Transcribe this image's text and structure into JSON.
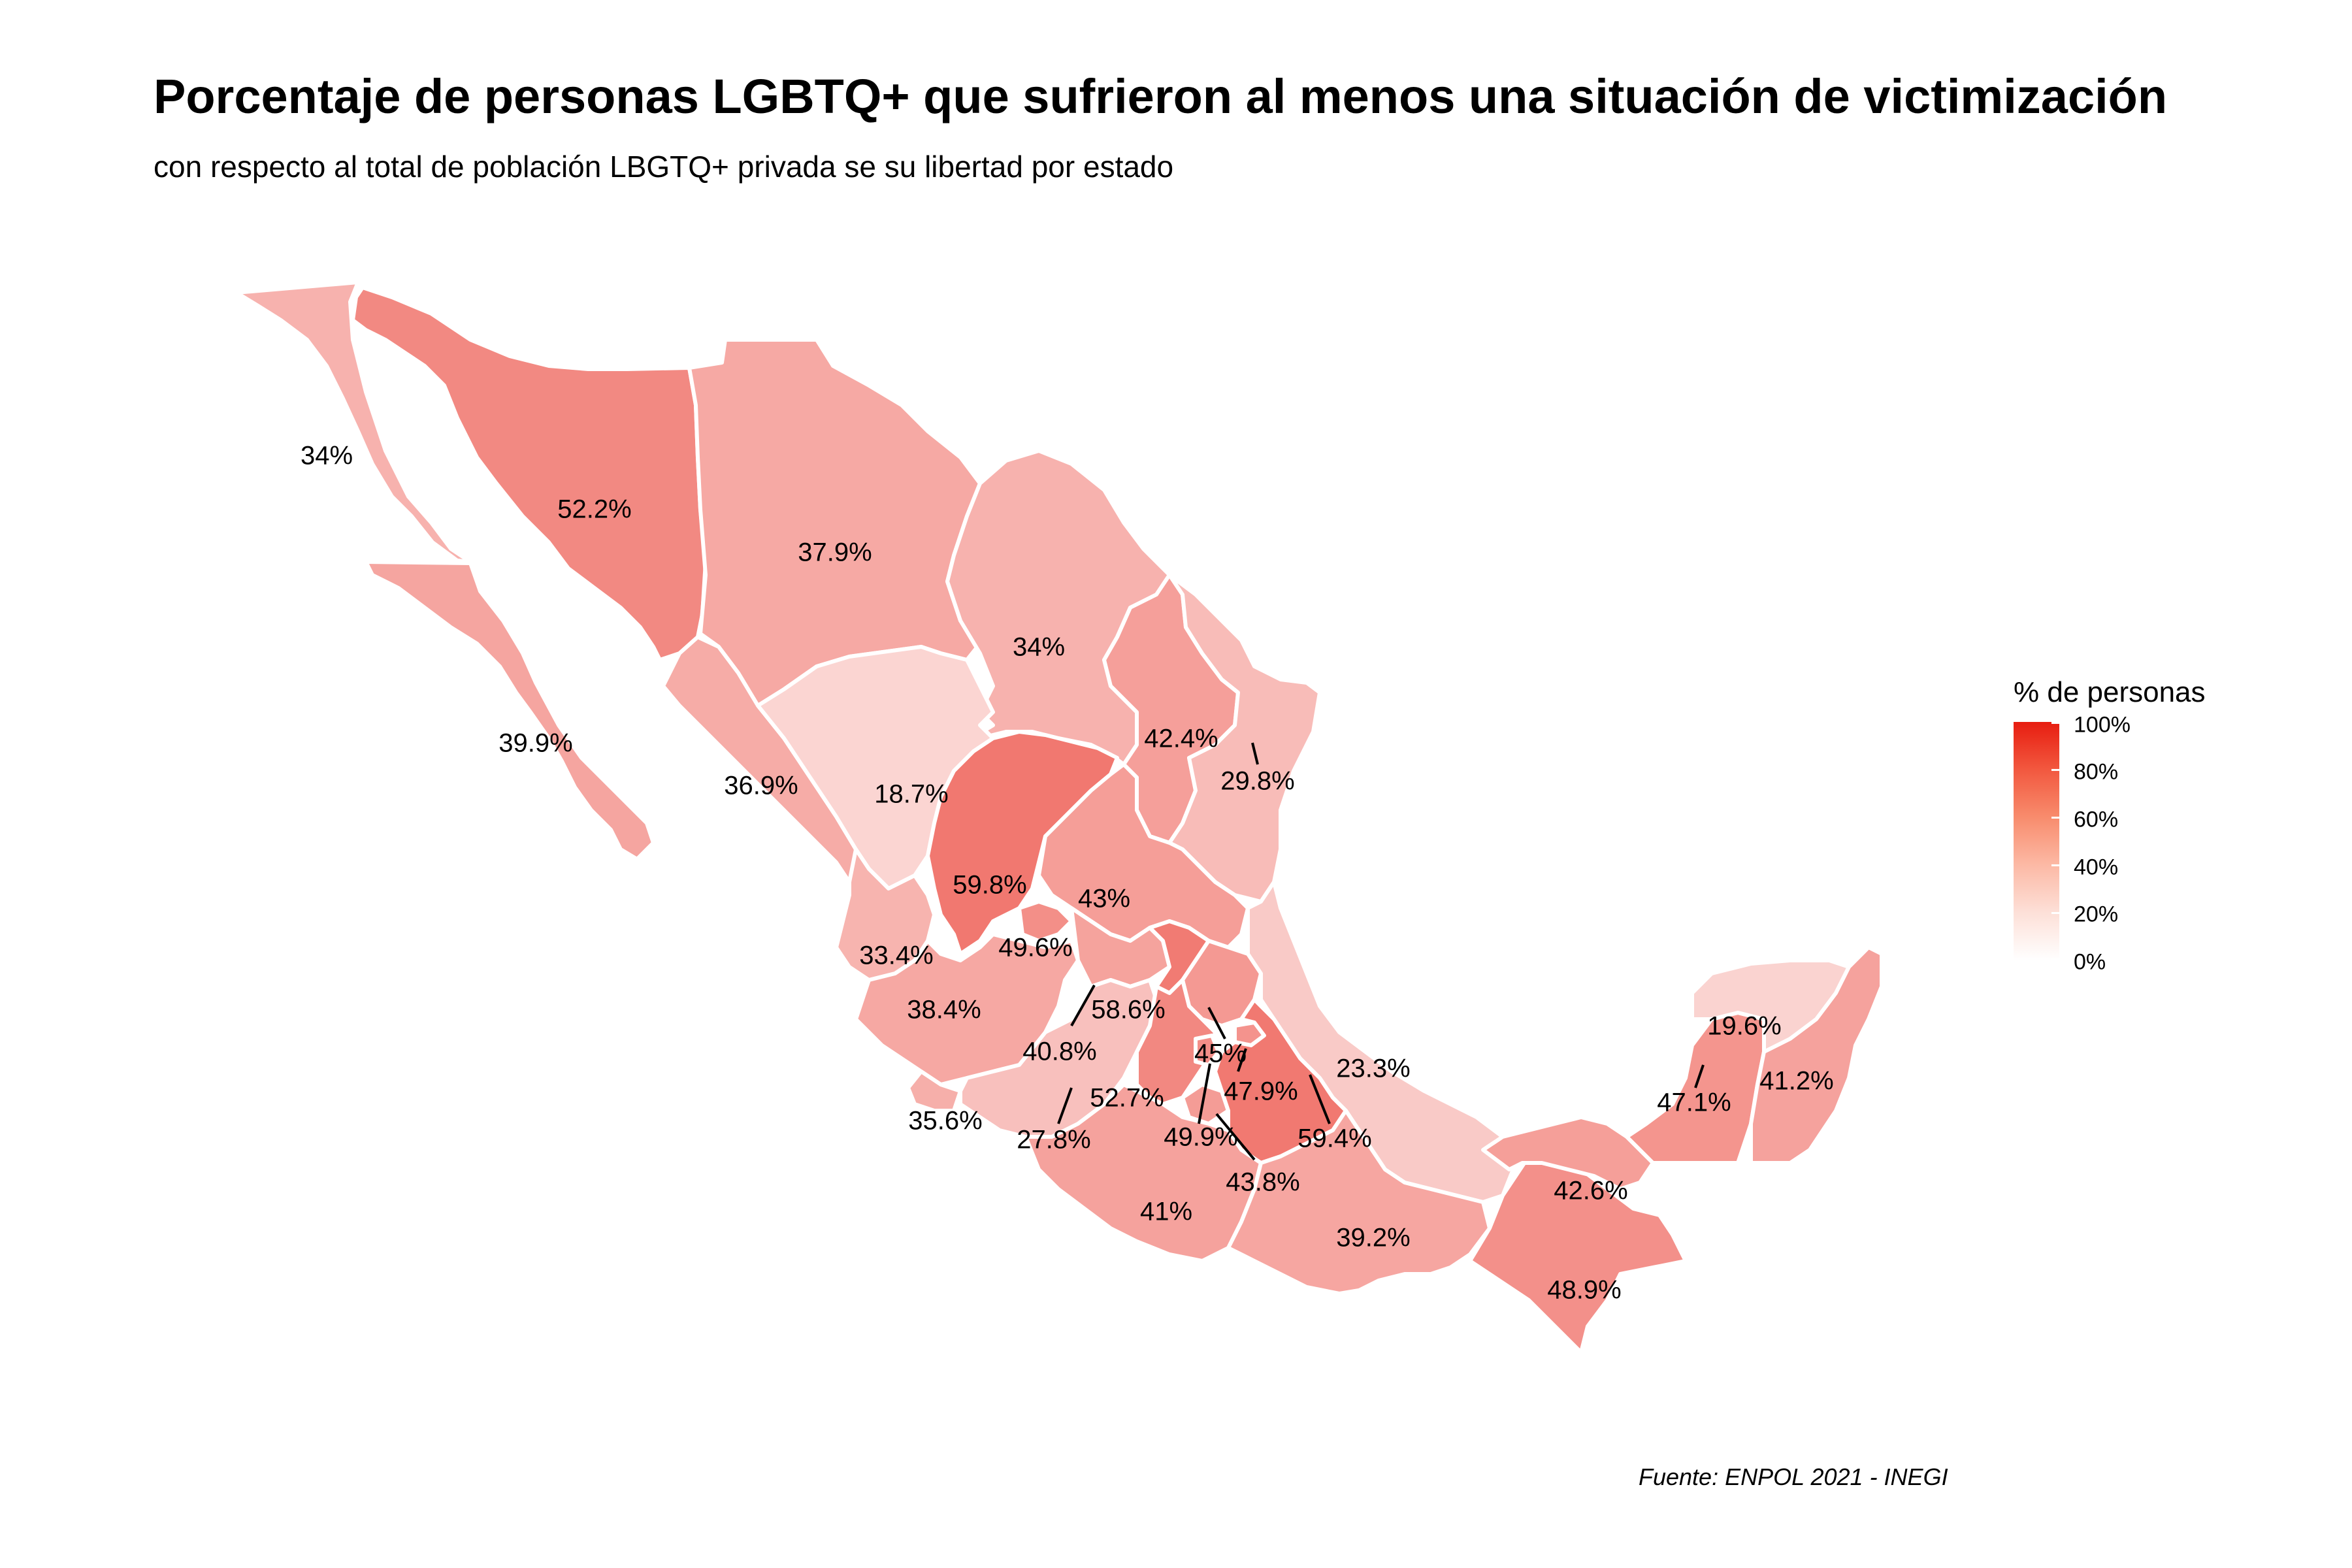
{
  "title": "Porcentaje de personas LGBTQ+ que sufrieron al menos una situación de victimización",
  "subtitle": "con respecto al total de población LBGTQ+ privada se su libertad por estado",
  "caption": "Fuente: ENPOL 2021 - INEGI",
  "legend": {
    "title": "% de personas",
    "ticks": [
      "100%",
      "80%",
      "60%",
      "40%",
      "20%",
      "0%"
    ],
    "color_low": "#ffffff",
    "color_high": "#e71d10"
  },
  "chart_data": {
    "type": "choropleth",
    "value_range": [
      0,
      100
    ],
    "values": [
      {
        "id": "bc",
        "value": 34,
        "label": "34%"
      },
      {
        "id": "son",
        "value": 52.2,
        "label": "52.2%"
      },
      {
        "id": "chih",
        "value": 37.9,
        "label": "37.9%"
      },
      {
        "id": "coah",
        "value": 34,
        "label": "34%"
      },
      {
        "id": "nl",
        "value": 42.4,
        "label": "42.4%"
      },
      {
        "id": "tamps",
        "value": 29.8,
        "label": "29.8%"
      },
      {
        "id": "bcs",
        "value": 39.9,
        "label": "39.9%"
      },
      {
        "id": "sin",
        "value": 36.9,
        "label": "36.9%"
      },
      {
        "id": "dgo",
        "value": 18.7,
        "label": "18.7%"
      },
      {
        "id": "zac",
        "value": 59.8,
        "label": "59.8%"
      },
      {
        "id": "slp",
        "value": 43,
        "label": "43%"
      },
      {
        "id": "ags",
        "value": 49.6,
        "label": "49.6%"
      },
      {
        "id": "nay",
        "value": 33.4,
        "label": "33.4%"
      },
      {
        "id": "jal",
        "value": 38.4,
        "label": "38.4%"
      },
      {
        "id": "gto",
        "value": 40.8,
        "label": "40.8%"
      },
      {
        "id": "qro",
        "value": 58.6,
        "label": "58.6%"
      },
      {
        "id": "hgo",
        "value": 45,
        "label": "45%"
      },
      {
        "id": "ver",
        "value": 23.3,
        "label": "23.3%"
      },
      {
        "id": "col",
        "value": 35.6,
        "label": "35.6%"
      },
      {
        "id": "mich",
        "value": 27.8,
        "label": "27.8%"
      },
      {
        "id": "mex",
        "value": 52.7,
        "label": "52.7%"
      },
      {
        "id": "tlax",
        "value": 47.9,
        "label": "47.9%"
      },
      {
        "id": "cdmx",
        "value": 49.9,
        "label": "49.9%"
      },
      {
        "id": "mor",
        "value": 43.8,
        "label": "43.8%"
      },
      {
        "id": "pue",
        "value": 59.4,
        "label": "59.4%"
      },
      {
        "id": "gro",
        "value": 41,
        "label": "41%"
      },
      {
        "id": "oax",
        "value": 39.2,
        "label": "39.2%"
      },
      {
        "id": "chis",
        "value": 48.9,
        "label": "48.9%"
      },
      {
        "id": "tab",
        "value": 42.6,
        "label": "42.6%"
      },
      {
        "id": "camp",
        "value": 47.1,
        "label": "47.1%"
      },
      {
        "id": "yuc",
        "value": 19.6,
        "label": "19.6%"
      },
      {
        "id": "qroo",
        "value": 41.2,
        "label": "41.2%"
      }
    ]
  }
}
